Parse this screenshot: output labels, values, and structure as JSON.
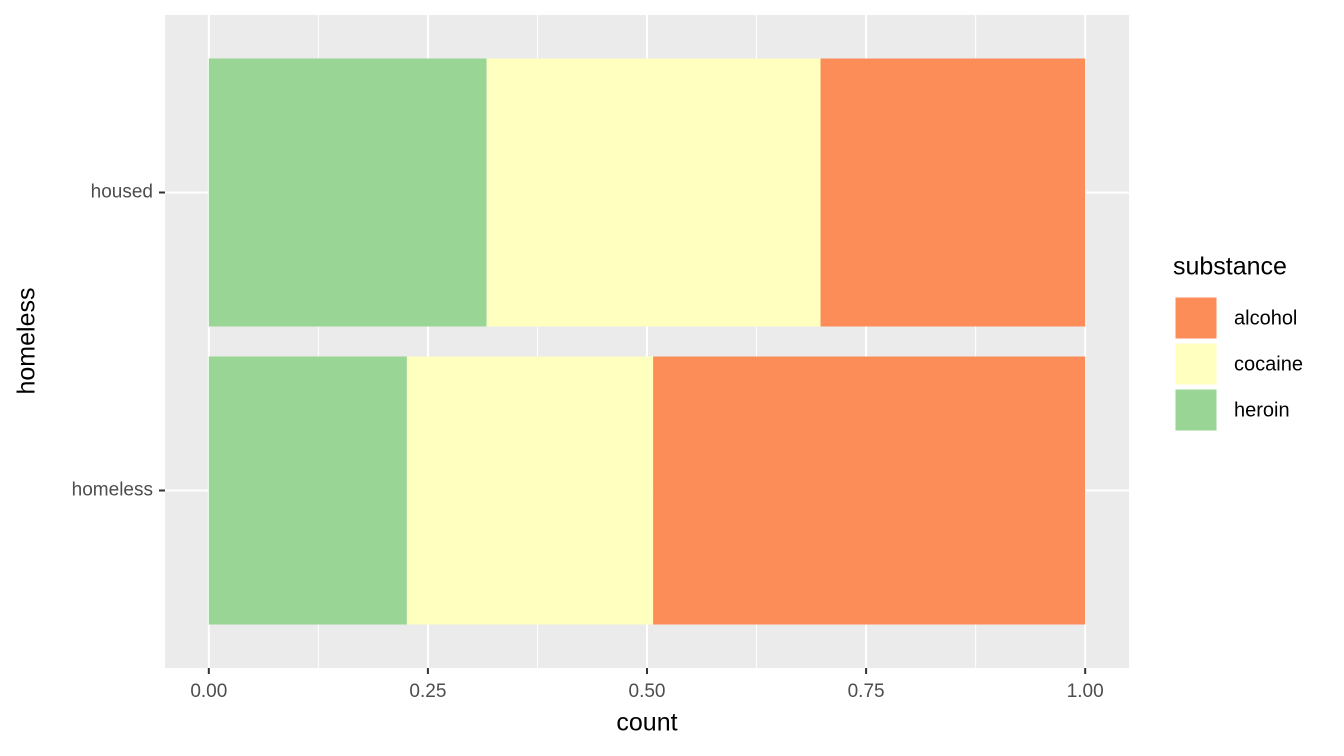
{
  "chart_data": {
    "type": "stacked-barh",
    "x_label": "count",
    "y_label": "homeless",
    "legend_title": "substance",
    "categories": [
      "housed",
      "homeless"
    ],
    "series": [
      {
        "name": "alcohol",
        "color": "#fc8d59",
        "values": [
          0.302,
          0.493
        ]
      },
      {
        "name": "cocaine",
        "color": "#ffffbf",
        "values": [
          0.381,
          0.281
        ]
      },
      {
        "name": "heroin",
        "color": "#99d594",
        "values": [
          0.317,
          0.226
        ]
      }
    ],
    "xlim": [
      -0.05,
      1.05
    ],
    "xticks": [
      {
        "value": 0,
        "label": "0.00"
      },
      {
        "value": 0.25,
        "label": "0.25"
      },
      {
        "value": 0.5,
        "label": "0.50"
      },
      {
        "value": 0.75,
        "label": "0.75"
      },
      {
        "value": 1,
        "label": "1.00"
      }
    ],
    "grid": true,
    "legend": "right"
  }
}
